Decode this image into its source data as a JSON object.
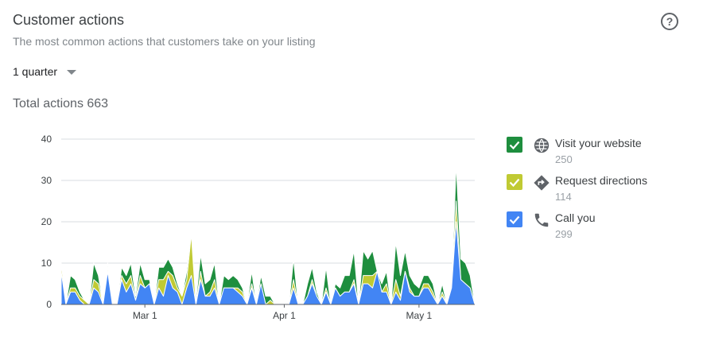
{
  "header": {
    "title": "Customer actions",
    "subtitle": "The most common actions that customers take on your listing",
    "help_icon": "help-circle-icon",
    "period": "1 quarter",
    "total_label": "Total actions 663"
  },
  "legend": [
    {
      "label": "Visit your website",
      "count": "250",
      "color": "#1e8e3e",
      "icon": "globe-icon",
      "checked": true
    },
    {
      "label": "Request directions",
      "count": "114",
      "color": "#c0ca33",
      "icon": "directions-icon",
      "checked": true
    },
    {
      "label": "Call you",
      "count": "299",
      "color": "#4285f4",
      "icon": "phone-icon",
      "checked": true
    }
  ],
  "chart_data": {
    "type": "area",
    "stacked": true,
    "ylim": [
      0,
      40
    ],
    "yticks": [
      0,
      10,
      20,
      30,
      40
    ],
    "xticks": [
      "Mar 1",
      "Apr 1",
      "May 1"
    ],
    "grid": true,
    "series": [
      {
        "name": "Call you",
        "color": "#4285f4",
        "values": [
          8,
          0,
          3,
          3,
          1,
          0,
          0,
          4,
          3,
          0,
          8,
          0,
          0,
          6,
          3,
          5,
          1,
          5,
          4,
          5,
          0,
          4,
          2,
          7,
          4,
          3,
          0,
          4,
          7,
          0,
          6,
          2,
          2,
          4,
          0,
          4,
          4,
          4,
          3,
          2,
          0,
          4,
          0,
          5,
          0,
          0,
          0,
          0,
          0,
          0,
          4,
          0,
          0,
          2,
          5,
          2,
          0,
          3,
          0,
          4,
          2,
          3,
          3,
          5,
          0,
          5,
          5,
          4,
          8,
          3,
          3,
          0,
          3,
          1,
          8,
          3,
          2,
          2,
          4,
          4,
          2,
          0,
          2,
          0,
          4,
          20,
          6,
          5,
          4,
          0
        ]
      },
      {
        "name": "Request directions",
        "color": "#c0ca33",
        "values": [
          2,
          0,
          1,
          1,
          1,
          1,
          0,
          2,
          2,
          0,
          1,
          0,
          0,
          1,
          2,
          2,
          0,
          2,
          0,
          0,
          0,
          2,
          4,
          1,
          3,
          1,
          2,
          2,
          10,
          0,
          2,
          0,
          1,
          2,
          0,
          0,
          0,
          0,
          1,
          1,
          0,
          1,
          0,
          0,
          0,
          1,
          0,
          0,
          0,
          0,
          2,
          0,
          0,
          0,
          1,
          0,
          0,
          1,
          0,
          0,
          0,
          0,
          0,
          1,
          0,
          2,
          2,
          3,
          0,
          0,
          2,
          0,
          3,
          1,
          0,
          1,
          0,
          0,
          1,
          1,
          1,
          0,
          1,
          0,
          0,
          5,
          0,
          0,
          0,
          0
        ]
      },
      {
        "name": "Visit your website",
        "color": "#1e8e3e",
        "values": [
          0,
          0,
          3,
          2,
          1,
          0,
          0,
          4,
          2,
          0,
          1,
          0,
          0,
          2,
          2,
          3,
          1,
          3,
          2,
          1,
          0,
          3,
          3,
          3,
          2,
          1,
          0,
          2,
          1,
          1,
          4,
          3,
          3,
          4,
          0,
          3,
          2,
          3,
          2,
          1,
          0,
          3,
          0,
          2,
          2,
          1,
          0,
          0,
          0,
          0,
          5,
          0,
          0,
          3,
          3,
          1,
          0,
          5,
          0,
          1,
          2,
          4,
          4,
          7,
          0,
          6,
          4,
          6,
          0,
          2,
          3,
          0,
          9,
          5,
          5,
          3,
          3,
          2,
          2,
          2,
          2,
          0,
          2,
          0,
          0,
          9,
          5,
          5,
          3,
          0
        ]
      }
    ]
  }
}
